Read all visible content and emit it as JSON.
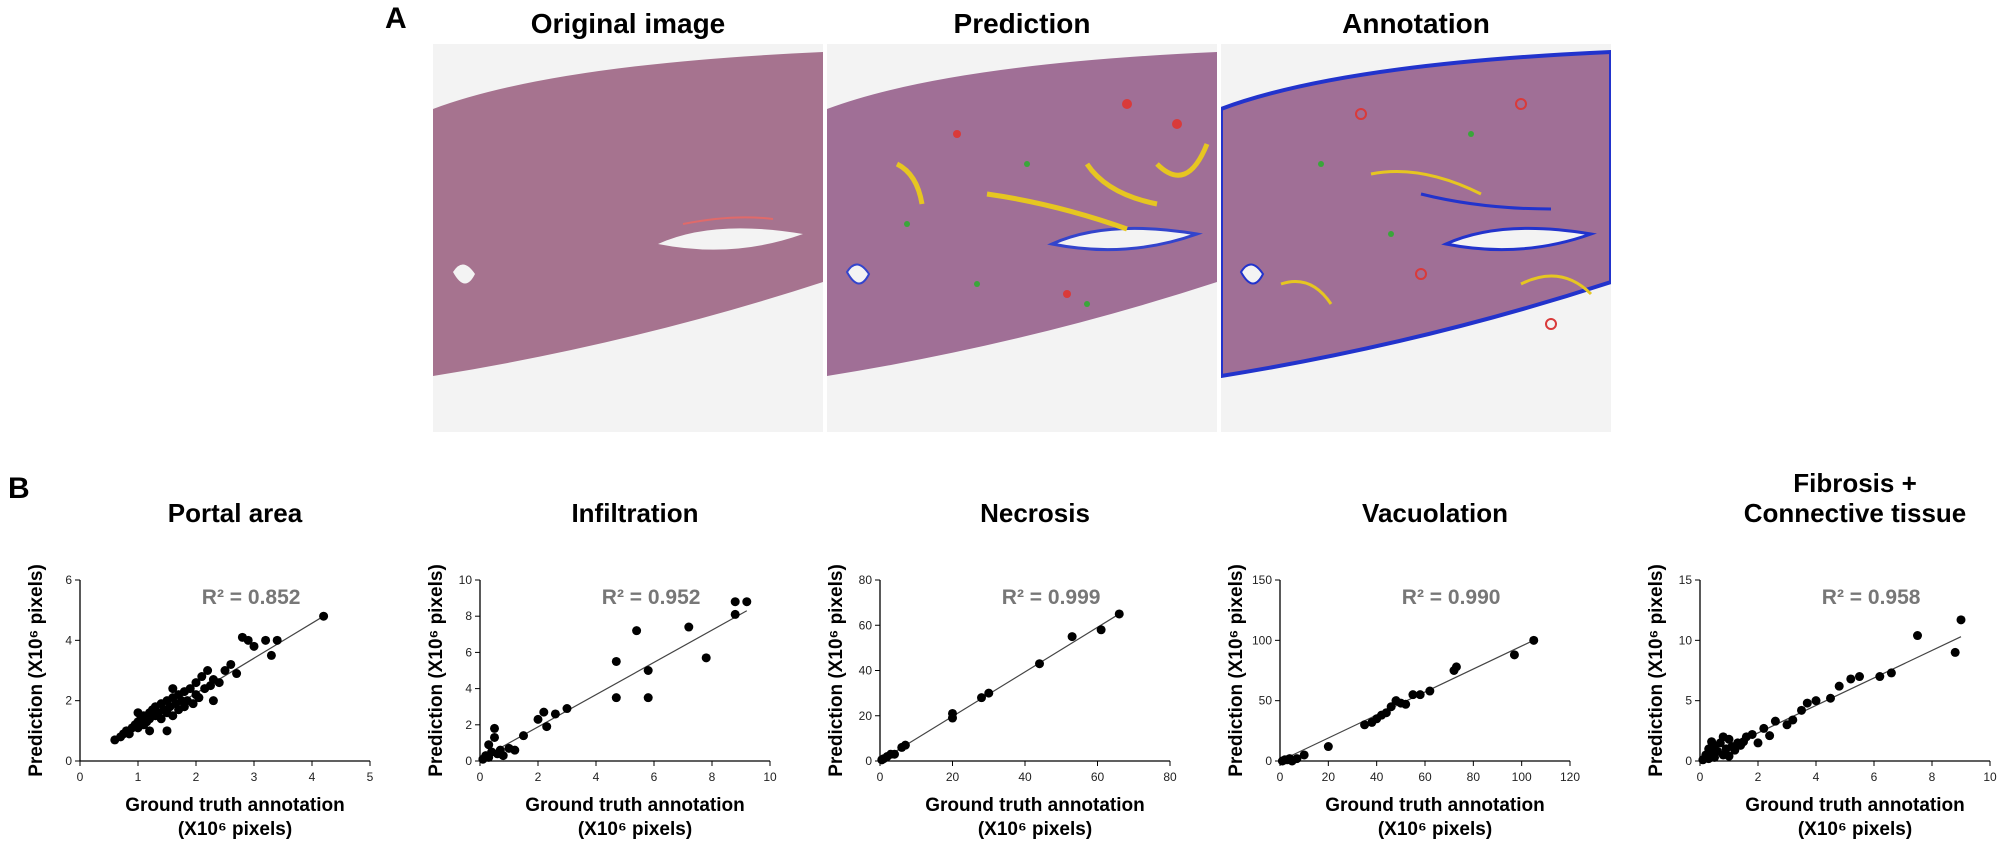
{
  "panel_a": {
    "letter": "A",
    "titles": [
      "Original image",
      "Prediction",
      "Annotation"
    ]
  },
  "panel_b": {
    "letter": "B"
  },
  "chart_data": [
    {
      "type": "scatter",
      "title": [
        "Portal area"
      ],
      "xlabel": [
        "Ground truth annotation",
        "(X10⁶ pixels)"
      ],
      "ylabel": "Prediction (X10⁶ pixels)",
      "xlim": [
        0,
        5
      ],
      "ylim": [
        0,
        6
      ],
      "xticks": [
        0,
        1,
        2,
        3,
        4,
        5
      ],
      "yticks": [
        0,
        2,
        4,
        6
      ],
      "annotation": "R² = 0.852",
      "fit_line": [
        [
          0.6,
          0.62
        ],
        [
          4.2,
          4.8
        ]
      ],
      "points": [
        [
          0.6,
          0.7
        ],
        [
          0.7,
          0.8
        ],
        [
          0.75,
          0.9
        ],
        [
          0.8,
          1.0
        ],
        [
          0.85,
          0.9
        ],
        [
          0.9,
          1.1
        ],
        [
          0.95,
          1.2
        ],
        [
          1.0,
          1.3
        ],
        [
          1.0,
          1.1
        ],
        [
          1.05,
          1.4
        ],
        [
          1.1,
          1.2
        ],
        [
          1.1,
          1.5
        ],
        [
          1.15,
          1.3
        ],
        [
          1.2,
          1.6
        ],
        [
          1.2,
          1.4
        ],
        [
          1.25,
          1.7
        ],
        [
          1.3,
          1.5
        ],
        [
          1.3,
          1.8
        ],
        [
          1.35,
          1.6
        ],
        [
          1.4,
          1.9
        ],
        [
          1.4,
          1.4
        ],
        [
          1.45,
          1.7
        ],
        [
          1.5,
          2.0
        ],
        [
          1.5,
          1.6
        ],
        [
          1.55,
          1.8
        ],
        [
          1.6,
          2.1
        ],
        [
          1.6,
          1.5
        ],
        [
          1.65,
          1.9
        ],
        [
          1.7,
          2.2
        ],
        [
          1.7,
          1.7
        ],
        [
          1.75,
          2.0
        ],
        [
          1.8,
          1.8
        ],
        [
          1.8,
          2.3
        ],
        [
          1.85,
          2.0
        ],
        [
          1.9,
          2.4
        ],
        [
          1.95,
          1.9
        ],
        [
          2.0,
          2.2
        ],
        [
          2.0,
          2.6
        ],
        [
          2.05,
          2.1
        ],
        [
          2.1,
          2.8
        ],
        [
          2.15,
          2.4
        ],
        [
          2.2,
          3.0
        ],
        [
          2.25,
          2.5
        ],
        [
          2.3,
          2.7
        ],
        [
          2.4,
          2.6
        ],
        [
          2.5,
          3.0
        ],
        [
          2.6,
          3.2
        ],
        [
          2.7,
          2.9
        ],
        [
          2.8,
          4.1
        ],
        [
          2.9,
          4.0
        ],
        [
          3.0,
          3.8
        ],
        [
          3.2,
          4.0
        ],
        [
          3.3,
          3.5
        ],
        [
          3.4,
          4.0
        ],
        [
          4.2,
          4.8
        ],
        [
          1.5,
          1.0
        ],
        [
          1.2,
          1.0
        ],
        [
          2.3,
          2.0
        ],
        [
          1.0,
          1.6
        ],
        [
          1.6,
          2.4
        ]
      ]
    },
    {
      "type": "scatter",
      "title": [
        "Infiltration"
      ],
      "xlabel": [
        "Ground truth annotation",
        "(X10⁶ pixels)"
      ],
      "ylabel": "Prediction (X10⁶ pixels)",
      "xlim": [
        0,
        10
      ],
      "ylim": [
        0,
        10
      ],
      "xticks": [
        0,
        2,
        4,
        6,
        8,
        10
      ],
      "yticks": [
        0,
        2,
        4,
        6,
        8,
        10
      ],
      "annotation": "R² = 0.952",
      "fit_line": [
        [
          0,
          0.1
        ],
        [
          9.2,
          8.3
        ]
      ],
      "points": [
        [
          0.1,
          0.1
        ],
        [
          0.2,
          0.3
        ],
        [
          0.3,
          0.2
        ],
        [
          0.3,
          0.9
        ],
        [
          0.4,
          0.5
        ],
        [
          0.5,
          1.3
        ],
        [
          0.5,
          1.8
        ],
        [
          0.6,
          0.4
        ],
        [
          0.7,
          0.6
        ],
        [
          0.8,
          0.3
        ],
        [
          1.0,
          0.7
        ],
        [
          1.2,
          0.6
        ],
        [
          1.5,
          1.4
        ],
        [
          2.0,
          2.3
        ],
        [
          2.2,
          2.7
        ],
        [
          2.3,
          1.9
        ],
        [
          2.6,
          2.6
        ],
        [
          3.0,
          2.9
        ],
        [
          4.7,
          3.5
        ],
        [
          4.7,
          5.5
        ],
        [
          5.4,
          7.2
        ],
        [
          5.8,
          3.5
        ],
        [
          5.8,
          5.0
        ],
        [
          7.2,
          7.4
        ],
        [
          7.8,
          5.7
        ],
        [
          8.8,
          8.8
        ],
        [
          8.8,
          8.1
        ],
        [
          9.2,
          8.8
        ]
      ]
    },
    {
      "type": "scatter",
      "title": [
        "Necrosis"
      ],
      "xlabel": [
        "Ground truth annotation",
        "(X10⁶ pixels)"
      ],
      "ylabel": "Prediction (X10⁶ pixels)",
      "xlim": [
        0,
        80
      ],
      "ylim": [
        0,
        80
      ],
      "xticks": [
        0,
        20,
        40,
        60,
        80
      ],
      "yticks": [
        0,
        20,
        40,
        60,
        80
      ],
      "annotation": "R² = 0.999",
      "fit_line": [
        [
          0,
          0
        ],
        [
          66,
          65
        ]
      ],
      "points": [
        [
          0.5,
          0.5
        ],
        [
          1,
          1
        ],
        [
          2,
          2
        ],
        [
          3,
          3
        ],
        [
          4,
          3
        ],
        [
          6,
          6
        ],
        [
          7,
          7
        ],
        [
          20,
          19
        ],
        [
          20,
          21
        ],
        [
          28,
          28
        ],
        [
          30,
          30
        ],
        [
          44,
          43
        ],
        [
          53,
          55
        ],
        [
          61,
          58
        ],
        [
          66,
          65
        ]
      ]
    },
    {
      "type": "scatter",
      "title": [
        "Vacuolation"
      ],
      "xlabel": [
        "Ground truth annotation",
        "(X10⁶ pixels)"
      ],
      "ylabel": "Prediction (X10⁶ pixels)",
      "xlim": [
        0,
        120
      ],
      "ylim": [
        0,
        150
      ],
      "xticks": [
        0,
        20,
        40,
        60,
        80,
        100,
        120
      ],
      "yticks": [
        0,
        50,
        100,
        150
      ],
      "annotation": "R² = 0.990",
      "fit_line": [
        [
          0,
          0
        ],
        [
          106,
          101
        ]
      ],
      "points": [
        [
          1,
          0
        ],
        [
          2,
          1
        ],
        [
          3,
          1
        ],
        [
          4,
          2
        ],
        [
          5,
          0
        ],
        [
          7,
          2
        ],
        [
          10,
          5
        ],
        [
          20,
          12
        ],
        [
          35,
          30
        ],
        [
          38,
          32
        ],
        [
          40,
          35
        ],
        [
          42,
          38
        ],
        [
          44,
          40
        ],
        [
          46,
          45
        ],
        [
          48,
          50
        ],
        [
          50,
          48
        ],
        [
          52,
          47
        ],
        [
          55,
          55
        ],
        [
          58,
          55
        ],
        [
          62,
          58
        ],
        [
          72,
          75
        ],
        [
          73,
          78
        ],
        [
          97,
          88
        ],
        [
          105,
          100
        ]
      ]
    },
    {
      "type": "scatter",
      "title": [
        "Fibrosis +",
        "Connective tissue"
      ],
      "xlabel": [
        "Ground truth annotation",
        "(X10⁶ pixels)"
      ],
      "ylabel": "Prediction (X10⁶ pixels)",
      "xlim": [
        0,
        10
      ],
      "ylim": [
        0,
        15
      ],
      "xticks": [
        0,
        2,
        4,
        6,
        8,
        10
      ],
      "yticks": [
        0,
        5,
        10,
        15
      ],
      "annotation": "R² = 0.958",
      "fit_line": [
        [
          0,
          0.05
        ],
        [
          9,
          10.3
        ]
      ],
      "points": [
        [
          0.1,
          0.1
        ],
        [
          0.2,
          0.5
        ],
        [
          0.3,
          0.2
        ],
        [
          0.3,
          1.0
        ],
        [
          0.4,
          0.6
        ],
        [
          0.5,
          1.2
        ],
        [
          0.5,
          0.3
        ],
        [
          0.6,
          0.8
        ],
        [
          0.7,
          1.5
        ],
        [
          0.8,
          0.5
        ],
        [
          0.9,
          1.0
        ],
        [
          1.0,
          0.4
        ],
        [
          1.0,
          1.8
        ],
        [
          1.1,
          1.2
        ],
        [
          1.2,
          0.9
        ],
        [
          1.3,
          1.5
        ],
        [
          1.4,
          1.3
        ],
        [
          1.5,
          1.6
        ],
        [
          1.8,
          2.2
        ],
        [
          2.0,
          1.5
        ],
        [
          2.2,
          2.7
        ],
        [
          2.4,
          2.1
        ],
        [
          2.6,
          3.3
        ],
        [
          3.0,
          3.0
        ],
        [
          3.2,
          3.4
        ],
        [
          3.5,
          4.2
        ],
        [
          3.7,
          4.8
        ],
        [
          4.0,
          5.0
        ],
        [
          4.5,
          5.2
        ],
        [
          4.8,
          6.2
        ],
        [
          5.2,
          6.8
        ],
        [
          5.5,
          7.0
        ],
        [
          6.2,
          7.0
        ],
        [
          6.6,
          7.3
        ],
        [
          7.5,
          10.4
        ],
        [
          8.8,
          9.0
        ],
        [
          9.0,
          11.7
        ],
        [
          0.8,
          2.0
        ],
        [
          1.6,
          2.0
        ],
        [
          0.4,
          1.6
        ]
      ]
    }
  ]
}
